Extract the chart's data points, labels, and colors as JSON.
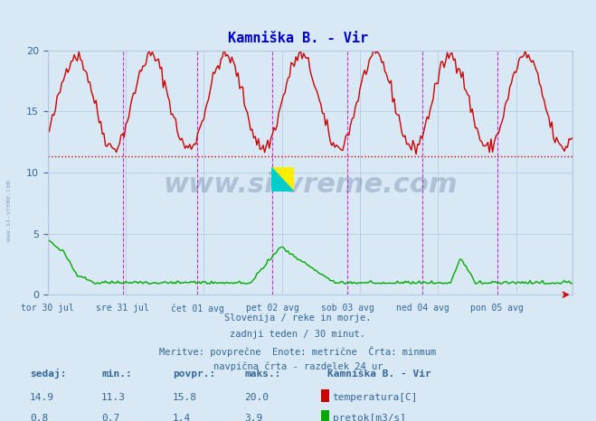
{
  "title": "Kamniška B. - Vir",
  "title_color": "#0000cc",
  "bg_color": "#d9e8f5",
  "plot_bg_color": "#d9e8f5",
  "grid_color": "#b0c8e0",
  "ylim": [
    0,
    20
  ],
  "yticks": [
    0,
    5,
    10,
    15,
    20
  ],
  "xlabel_color": "#336699",
  "watermark_text": "www.si-vreme.com",
  "watermark_color": "#1a3a6b",
  "subtitle_lines": [
    "Slovenija / reke in morje.",
    "zadnji teden / 30 minut.",
    "Meritve: povprečne  Enote: metrične  Črta: minmum",
    "navpična črta - razdelek 24 ur"
  ],
  "subtitle_color": "#336699",
  "x_tick_labels": [
    "tor 30 jul",
    "sre 31 jul",
    "čet 01 avg",
    "pet 02 avg",
    "sob 03 avg",
    "ned 04 avg",
    "pon 05 avg"
  ],
  "x_tick_positions": [
    0,
    48,
    96,
    144,
    192,
    240,
    288
  ],
  "vline_color": "#cc00cc",
  "vline_positions": [
    0,
    48,
    96,
    144,
    192,
    240,
    288,
    336
  ],
  "hline_value": 11.3,
  "hline_color": "#cc0000",
  "temp_color": "#cc0000",
  "flow_color": "#00aa00",
  "legend_items": [
    {
      "label": "temperatura[C]",
      "color": "#cc0000"
    },
    {
      "label": "pretok[m3/s]",
      "color": "#00aa00"
    }
  ],
  "stats_headers": [
    "sedaj:",
    "min.:",
    "povpr.:",
    "maks.:"
  ],
  "stats_temp": [
    14.9,
    11.3,
    15.8,
    20.0
  ],
  "stats_flow": [
    0.8,
    0.7,
    1.4,
    3.9
  ],
  "station_name": "Kamniška B. - Vir",
  "n_points": 337
}
